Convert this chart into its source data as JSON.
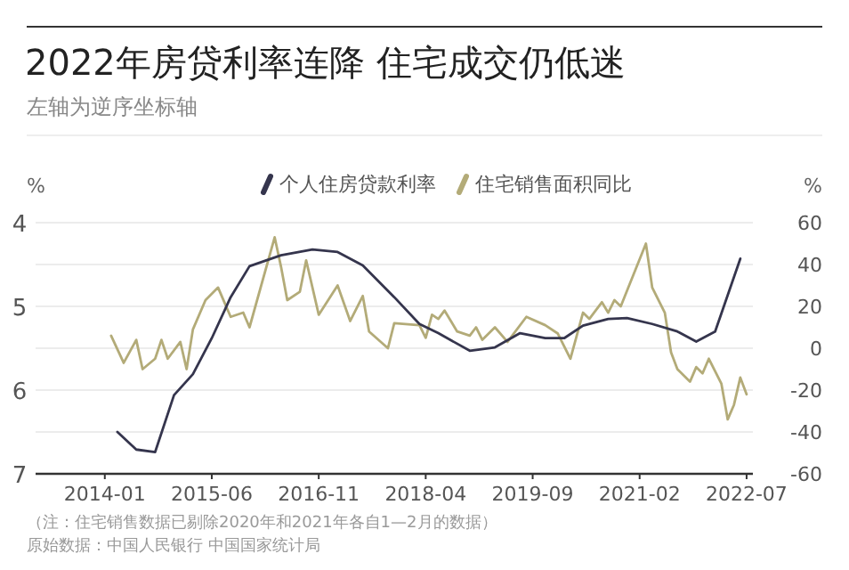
{
  "chart_data": {
    "type": "line",
    "title": "2022年房贷利率连降 住宅成交仍低迷",
    "subtitle": "左轴为逆序坐标轴",
    "ylabel": "%",
    "y2label": "%",
    "xlim": [
      "2013-02",
      "2022-08"
    ],
    "xticks": [
      "2014-01",
      "2015-06",
      "2016-11",
      "2018-04",
      "2019-09",
      "2021-02",
      "2022-07"
    ],
    "ylim": [
      7,
      4
    ],
    "yticks": [
      4,
      5,
      6,
      7
    ],
    "y2lim": [
      -60,
      60
    ],
    "y2ticks": [
      -60,
      -40,
      -20,
      0,
      20,
      40,
      60
    ],
    "grid": "y",
    "legend": "top",
    "line_style": "solid",
    "marker": "none",
    "series": [
      {
        "name": "个人住房贷款利率",
        "color": "#35354d",
        "axis": "y",
        "x": [
          "2014-03",
          "2014-06",
          "2014-09",
          "2014-12",
          "2015-03",
          "2015-06",
          "2015-09",
          "2015-12",
          "2016-05",
          "2016-10",
          "2017-02",
          "2017-06",
          "2017-11",
          "2018-03",
          "2018-06",
          "2018-11",
          "2019-03",
          "2019-07",
          "2019-11",
          "2020-02",
          "2020-05",
          "2020-09",
          "2020-12",
          "2021-04",
          "2021-08",
          "2021-11",
          "2022-02",
          "2022-06"
        ],
        "values": [
          6.5,
          6.71,
          6.74,
          6.06,
          5.81,
          5.38,
          4.89,
          4.52,
          4.39,
          4.32,
          4.35,
          4.51,
          4.89,
          5.21,
          5.32,
          5.53,
          5.49,
          5.32,
          5.38,
          5.38,
          5.23,
          5.15,
          5.14,
          5.21,
          5.3,
          5.42,
          5.3,
          4.43
        ]
      },
      {
        "name": "住宅销售面积同比",
        "color": "#b3ab78",
        "axis": "y2",
        "x": [
          "2014-02",
          "2014-04",
          "2014-06",
          "2014-07",
          "2014-09",
          "2014-10",
          "2014-11",
          "2015-01",
          "2015-02",
          "2015-03",
          "2015-05",
          "2015-07",
          "2015-09",
          "2015-11",
          "2015-12",
          "2016-04",
          "2016-05",
          "2016-06",
          "2016-08",
          "2016-09",
          "2016-11",
          "2017-02",
          "2017-04",
          "2017-06",
          "2017-07",
          "2017-10",
          "2017-11",
          "2018-03",
          "2018-04",
          "2018-05",
          "2018-06",
          "2018-07",
          "2018-09",
          "2018-11",
          "2018-12",
          "2019-01",
          "2019-03",
          "2019-05",
          "2019-08",
          "2019-11",
          "2020-01",
          "2020-03",
          "2020-05",
          "2020-06",
          "2020-08",
          "2020-09",
          "2020-10",
          "2020-11",
          "2021-03",
          "2021-04",
          "2021-06",
          "2021-07",
          "2021-08",
          "2021-10",
          "2021-11",
          "2021-12",
          "2022-01",
          "2022-03",
          "2022-04",
          "2022-05",
          "2022-06",
          "2022-07"
        ],
        "values": [
          6,
          -7,
          4,
          -10,
          -5,
          4,
          -5,
          3,
          -10,
          9,
          23,
          29,
          15,
          17,
          10,
          53,
          39,
          23,
          27,
          42,
          16,
          30,
          13,
          25,
          8,
          0,
          12,
          11,
          5,
          16,
          14,
          18,
          8,
          6,
          10,
          4,
          10,
          3,
          15,
          11,
          7,
          -5,
          17,
          14,
          22,
          17,
          23,
          20,
          50,
          29,
          17,
          -2,
          -10,
          -16,
          -9,
          -12,
          -5,
          -17,
          -34,
          -27,
          -14,
          -22
        ]
      }
    ],
    "annotations": [
      "（注：住宅销售数据已剔除2020年和2021年各自1—2月的数据）",
      "原始数据：中国人民银行 中国国家统计局"
    ]
  }
}
